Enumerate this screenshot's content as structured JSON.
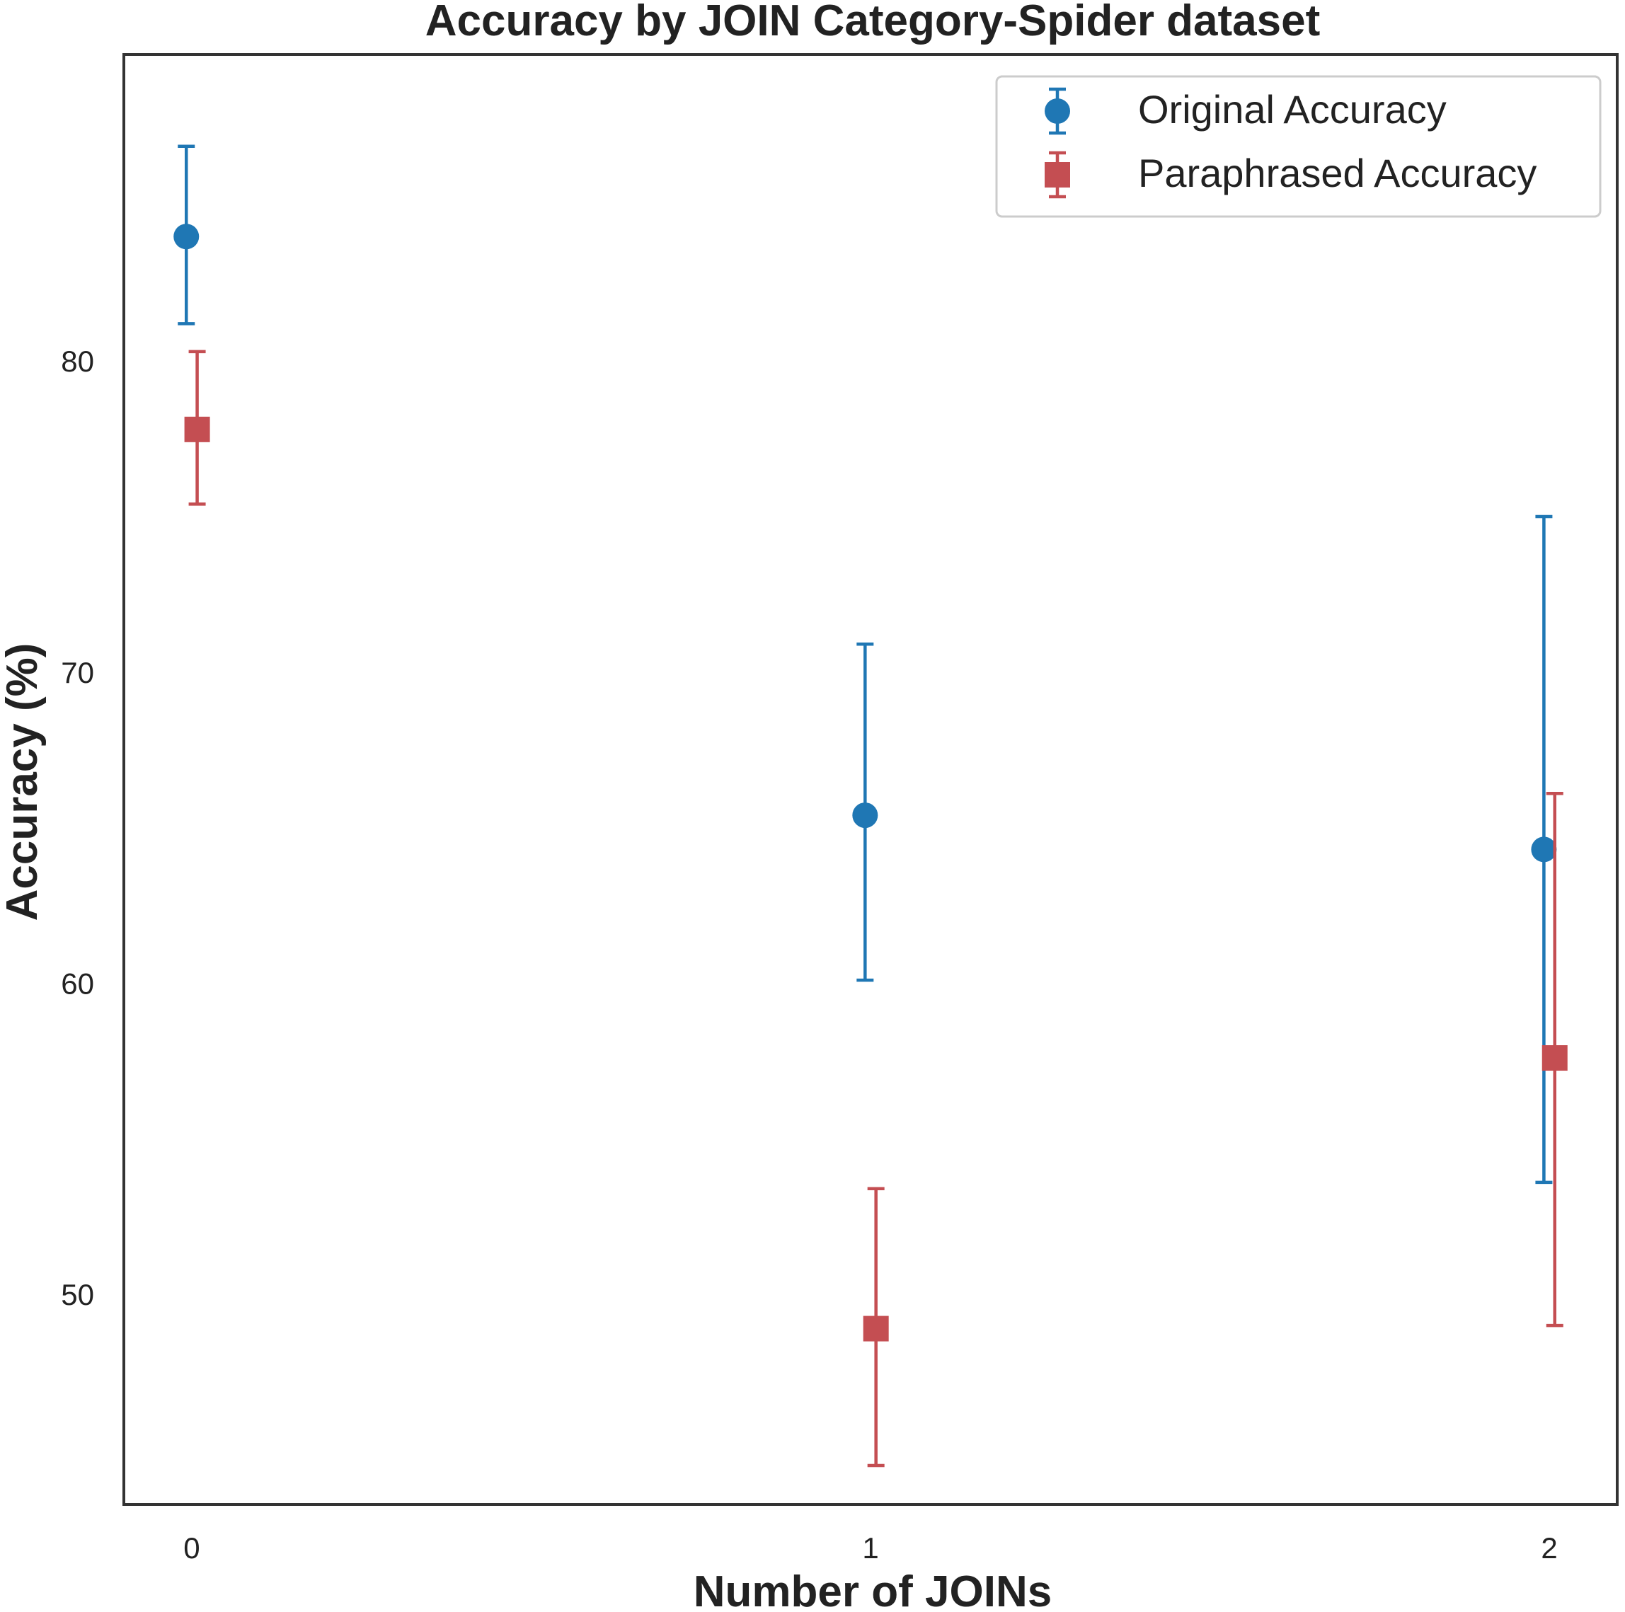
{
  "chart_data": {
    "type": "scatter",
    "title": "Accuracy by JOIN Category-Spider dataset",
    "xlabel": "Number of JOINs",
    "ylabel": "Accuracy (%)",
    "x": [
      0,
      1,
      2
    ],
    "x_tick_labels": [
      "0",
      "1",
      "2"
    ],
    "y_ticks": [
      50,
      60,
      70,
      80
    ],
    "y_tick_labels": [
      "50",
      "60",
      "70",
      "80"
    ],
    "xlim": [
      -0.1,
      2.1
    ],
    "ylim": [
      43.25,
      89.85
    ],
    "grid": false,
    "legend_position": "top-right",
    "series": [
      {
        "name": "Original Accuracy",
        "marker": "circle",
        "color": "#1f77b4",
        "x_offset": -0.008,
        "values": [
          84.0,
          65.4,
          64.3
        ],
        "err_low": [
          81.2,
          60.1,
          53.6
        ],
        "err_high": [
          86.9,
          70.9,
          75.0
        ]
      },
      {
        "name": "Paraphrased Accuracy",
        "marker": "square",
        "color": "#c44e52",
        "x_offset": 0.008,
        "values": [
          77.8,
          48.9,
          57.6
        ],
        "err_low": [
          75.4,
          44.5,
          49.0
        ],
        "err_high": [
          80.3,
          53.4,
          66.1
        ]
      }
    ]
  }
}
